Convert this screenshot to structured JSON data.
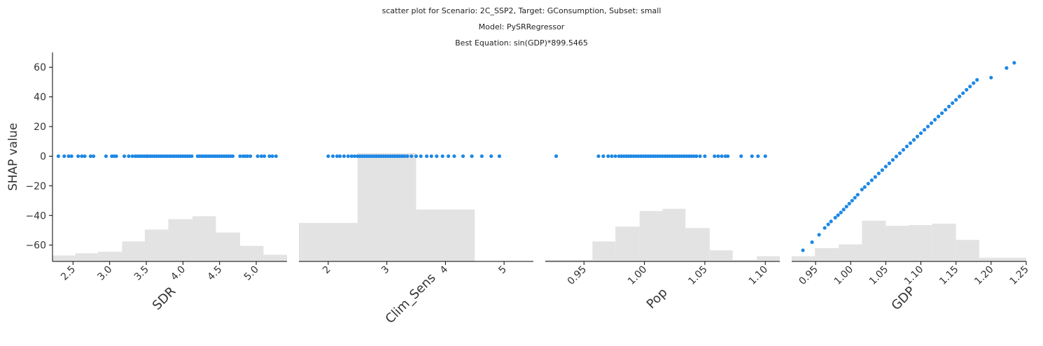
{
  "header": {
    "line1": "scatter plot for Scenario: 2C_SSP2, Target: GConsumption, Subset: small",
    "line2": "Model: PySRRegressor",
    "line3": "Best Equation: sin(GDP)*899.5465"
  },
  "colors": {
    "points": "#1e88e5",
    "hist": "#e3e3e3",
    "axis": "#000000"
  },
  "chart_data": [
    {
      "type": "scatter",
      "xlabel": "SDR",
      "ylabel": "SHAP value",
      "xlim": [
        2.22,
        5.42
      ],
      "ylim": [
        -71,
        70
      ],
      "xticks": [
        2.5,
        3.0,
        3.5,
        4.0,
        4.5,
        5.0
      ],
      "xtick_labels": [
        "2.5",
        "3.0",
        "3.5",
        "4.0",
        "4.5",
        "5.0"
      ],
      "yticks": [
        -60,
        -40,
        -20,
        0,
        20,
        40,
        60
      ],
      "ytick_labels": [
        "−60",
        "−40",
        "−20",
        "0",
        "20",
        "40",
        "60"
      ],
      "x": [
        2.3,
        2.38,
        2.44,
        2.48,
        2.57,
        2.62,
        2.66,
        2.74,
        2.78,
        2.95,
        3.03,
        3.06,
        3.09,
        3.2,
        3.26,
        3.31,
        3.35,
        3.38,
        3.41,
        3.44,
        3.47,
        3.5,
        3.52,
        3.55,
        3.58,
        3.61,
        3.64,
        3.67,
        3.7,
        3.73,
        3.76,
        3.79,
        3.82,
        3.85,
        3.88,
        3.91,
        3.94,
        3.97,
        4.0,
        4.03,
        4.06,
        4.09,
        4.12,
        4.2,
        4.23,
        4.26,
        4.29,
        4.32,
        4.35,
        4.38,
        4.41,
        4.44,
        4.47,
        4.5,
        4.53,
        4.56,
        4.59,
        4.62,
        4.65,
        4.68,
        4.78,
        4.82,
        4.85,
        4.88,
        4.92,
        5.02,
        5.07,
        5.11,
        5.18,
        5.22,
        5.27
      ],
      "y": [
        0,
        0,
        0,
        0,
        0,
        0,
        0,
        0,
        0,
        0,
        0,
        0,
        0,
        0,
        0,
        0,
        0,
        0,
        0,
        0,
        0,
        0,
        0,
        0,
        0,
        0,
        0,
        0,
        0,
        0,
        0,
        0,
        0,
        0,
        0,
        0,
        0,
        0,
        0,
        0,
        0,
        0,
        0,
        0,
        0,
        0,
        0,
        0,
        0,
        0,
        0,
        0,
        0,
        0,
        0,
        0,
        0,
        0,
        0,
        0,
        0,
        0,
        0,
        0,
        0,
        0,
        0,
        0,
        0,
        0,
        0
      ],
      "hist_edges": [
        2.22,
        2.53,
        2.84,
        3.17,
        3.48,
        3.8,
        4.13,
        4.45,
        4.78,
        5.1,
        5.42
      ],
      "hist_values": [
        -67,
        -65.5,
        -64.5,
        -57.5,
        -49.5,
        -42.5,
        -40.5,
        -51.5,
        -60.5,
        -66.5
      ]
    },
    {
      "type": "scatter",
      "xlabel": "Clim_Sens",
      "xlim": [
        1.5,
        5.5
      ],
      "ylim": [
        -71,
        70
      ],
      "xticks": [
        2,
        3,
        4,
        5
      ],
      "xtick_labels": [
        "2",
        "3",
        "4",
        "5"
      ],
      "x": [
        2.0,
        2.08,
        2.15,
        2.2,
        2.27,
        2.34,
        2.4,
        2.45,
        2.5,
        2.54,
        2.58,
        2.62,
        2.66,
        2.7,
        2.74,
        2.78,
        2.82,
        2.86,
        2.9,
        2.94,
        2.98,
        3.02,
        3.06,
        3.1,
        3.14,
        3.18,
        3.22,
        3.26,
        3.3,
        3.35,
        3.42,
        3.5,
        3.58,
        3.68,
        3.76,
        3.85,
        3.95,
        4.05,
        4.15,
        4.3,
        4.45,
        4.62,
        4.78,
        4.92
      ],
      "y": [
        0,
        0,
        0,
        0,
        0,
        0,
        0,
        0,
        0,
        0,
        0,
        0,
        0,
        0,
        0,
        0,
        0,
        0,
        0,
        0,
        0,
        0,
        0,
        0,
        0,
        0,
        0,
        0,
        0,
        0,
        0,
        0,
        0,
        0,
        0,
        0,
        0,
        0,
        0,
        0,
        0,
        0,
        0,
        0
      ],
      "hist_edges": [
        1.5,
        2.5,
        3.5,
        4.5,
        5.5
      ],
      "hist_values": [
        -45,
        2,
        -36,
        -71
      ]
    },
    {
      "type": "scatter",
      "xlabel": "Pop",
      "xlim": [
        0.918,
        1.112
      ],
      "ylim": [
        -71,
        70
      ],
      "xticks": [
        0.95,
        1.0,
        1.05,
        1.1
      ],
      "xtick_labels": [
        "0.95",
        "1.00",
        "1.05",
        "1.10"
      ],
      "x": [
        0.927,
        0.962,
        0.966,
        0.97,
        0.973,
        0.976,
        0.979,
        0.981,
        0.983,
        0.985,
        0.987,
        0.989,
        0.991,
        0.993,
        0.995,
        0.997,
        0.999,
        1.001,
        1.003,
        1.005,
        1.007,
        1.009,
        1.011,
        1.013,
        1.015,
        1.017,
        1.019,
        1.021,
        1.023,
        1.025,
        1.027,
        1.029,
        1.031,
        1.033,
        1.035,
        1.037,
        1.039,
        1.041,
        1.043,
        1.046,
        1.05,
        1.058,
        1.061,
        1.064,
        1.067,
        1.069,
        1.08,
        1.089,
        1.094,
        1.1
      ],
      "y": [
        0,
        0,
        0,
        0,
        0,
        0,
        0,
        0,
        0,
        0,
        0,
        0,
        0,
        0,
        0,
        0,
        0,
        0,
        0,
        0,
        0,
        0,
        0,
        0,
        0,
        0,
        0,
        0,
        0,
        0,
        0,
        0,
        0,
        0,
        0,
        0,
        0,
        0,
        0,
        0,
        0,
        0,
        0,
        0,
        0,
        0,
        0,
        0,
        0,
        0
      ],
      "hist_edges": [
        0.918,
        0.937,
        0.957,
        0.976,
        0.996,
        1.015,
        1.034,
        1.054,
        1.073,
        1.093,
        1.112
      ],
      "hist_values": [
        -70,
        -70,
        -57.5,
        -47.5,
        -37,
        -35.5,
        -48.5,
        -63.5,
        -70,
        -67.5
      ]
    },
    {
      "type": "scatter",
      "xlabel": "GDP",
      "xlim": [
        0.916,
        1.25
      ],
      "ylim": [
        -71,
        70
      ],
      "xticks": [
        0.95,
        1.0,
        1.05,
        1.1,
        1.15,
        1.2,
        1.25
      ],
      "xtick_labels": [
        "0.95",
        "1.00",
        "1.05",
        "1.10",
        "1.15",
        "1.20",
        "1.25"
      ],
      "x": [
        0.932,
        0.945,
        0.955,
        0.963,
        0.968,
        0.972,
        0.978,
        0.982,
        0.986,
        0.99,
        0.994,
        0.998,
        1.002,
        1.006,
        1.01,
        1.016,
        1.02,
        1.025,
        1.03,
        1.035,
        1.04,
        1.045,
        1.05,
        1.055,
        1.06,
        1.065,
        1.07,
        1.075,
        1.08,
        1.085,
        1.09,
        1.095,
        1.1,
        1.105,
        1.11,
        1.115,
        1.12,
        1.125,
        1.13,
        1.135,
        1.14,
        1.145,
        1.15,
        1.155,
        1.16,
        1.165,
        1.17,
        1.175,
        1.18,
        1.2,
        1.222,
        1.233
      ],
      "y": [
        -63.5,
        -58,
        -53,
        -48.4,
        -46,
        -44,
        -41.5,
        -39.8,
        -38,
        -36,
        -34,
        -32,
        -30,
        -28,
        -26,
        -22.5,
        -20.8,
        -18.5,
        -16.2,
        -14,
        -11.6,
        -9.4,
        -7,
        -4.8,
        -2.5,
        -0.2,
        2,
        4.3,
        6.6,
        8.8,
        11,
        13.3,
        15.5,
        17.8,
        20,
        22.3,
        24.6,
        26.8,
        29,
        31.3,
        33.5,
        35.8,
        38,
        40.3,
        42.5,
        44.8,
        47,
        49.3,
        51.5,
        53,
        59.5,
        63
      ],
      "hist_edges": [
        0.916,
        0.949,
        0.983,
        1.016,
        1.05,
        1.083,
        1.116,
        1.15,
        1.183,
        1.216,
        1.25
      ],
      "hist_values": [
        -67.5,
        -62,
        -59.5,
        -43.5,
        -47,
        -46.5,
        -45.5,
        -56.5,
        -68.5,
        -68.5
      ]
    }
  ]
}
